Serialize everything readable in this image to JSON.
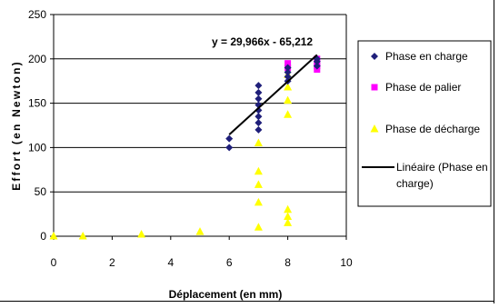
{
  "chart_data": {
    "type": "scatter",
    "title": "",
    "xlabel": "Déplacement (en mm)",
    "ylabel": "Effort (en Newton)",
    "xlim": [
      0,
      10
    ],
    "ylim": [
      0,
      250
    ],
    "x_ticks": [
      0,
      2,
      4,
      6,
      8,
      10
    ],
    "y_ticks": [
      0,
      50,
      100,
      150,
      200,
      250
    ],
    "grid": "horizontal",
    "legend_position": "right",
    "series": [
      {
        "name": "Phase en charge",
        "marker": "diamond",
        "color": "#1F1F7A",
        "points": [
          [
            6,
            100
          ],
          [
            6,
            110
          ],
          [
            7,
            120
          ],
          [
            7,
            128
          ],
          [
            7,
            135
          ],
          [
            7,
            142
          ],
          [
            7,
            148
          ],
          [
            7,
            155
          ],
          [
            7,
            162
          ],
          [
            7,
            170
          ],
          [
            8,
            175
          ],
          [
            8,
            180
          ],
          [
            8,
            185
          ],
          [
            8,
            190
          ],
          [
            9,
            192
          ],
          [
            9,
            197
          ],
          [
            9,
            200
          ]
        ]
      },
      {
        "name": "Phase de palier",
        "marker": "square",
        "color": "#FF00FF",
        "points": [
          [
            8,
            195
          ],
          [
            8,
            190
          ],
          [
            9,
            200
          ],
          [
            9,
            196
          ],
          [
            9,
            192
          ],
          [
            9,
            188
          ]
        ]
      },
      {
        "name": "Phase de décharge",
        "marker": "triangle",
        "color": "#FFFF00",
        "points": [
          [
            0,
            0
          ],
          [
            1,
            0
          ],
          [
            3,
            2
          ],
          [
            5,
            5
          ],
          [
            7,
            10
          ],
          [
            7,
            38
          ],
          [
            7,
            58
          ],
          [
            7,
            73
          ],
          [
            7,
            105
          ],
          [
            8,
            15
          ],
          [
            8,
            22
          ],
          [
            8,
            30
          ],
          [
            8,
            137
          ],
          [
            8,
            153
          ],
          [
            8,
            168
          ],
          [
            8,
            182
          ]
        ]
      },
      {
        "name": "Linéaire (Phase en charge)",
        "type": "line",
        "color": "#000000",
        "from": [
          6,
          114.6
        ],
        "to": [
          9,
          204.5
        ]
      }
    ],
    "annotations": [
      {
        "text": "y = 29,966x - 65,212"
      }
    ]
  }
}
